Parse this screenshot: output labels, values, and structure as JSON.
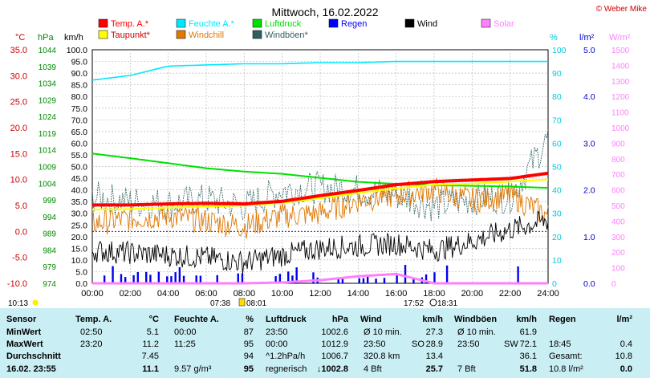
{
  "title": "Mittwoch, 16.02.2022",
  "copyright": "© Weber Mike",
  "units": {
    "temp": "°C",
    "pressure": "hPa",
    "wind": "km/h",
    "humidity": "%",
    "rain": "l/m²",
    "solar": "W/m²"
  },
  "legend": [
    {
      "label": "Temp. A.*",
      "color": "#ff0000"
    },
    {
      "label": "Feuchte A.*",
      "color": "#00e8ff"
    },
    {
      "label": "Luftdruck",
      "color": "#00e000"
    },
    {
      "label": "Regen",
      "color": "#0000ff"
    },
    {
      "label": "Wind",
      "color": "#000000"
    },
    {
      "label": "Solar",
      "color": "#ff7fff"
    },
    {
      "label": "Taupunkt*",
      "color": "#ffff00"
    },
    {
      "label": "Windchill",
      "color": "#e07800"
    },
    {
      "label": "Windböen*",
      "color": "#2f5f5f"
    }
  ],
  "axes": {
    "temp_ticks": [
      "35.0",
      "30.0",
      "25.0",
      "20.0",
      "15.0",
      "10.0",
      "5.0",
      "0.0",
      "-5.0",
      "-10.0"
    ],
    "pressure_ticks": [
      "1044",
      "1039",
      "1034",
      "1029",
      "1024",
      "1019",
      "1014",
      "1009",
      "1004",
      "999",
      "994",
      "989",
      "984",
      "979",
      "974"
    ],
    "wind_ticks": [
      "100.0",
      "95.0",
      "90.0",
      "85.0",
      "80.0",
      "75.0",
      "70.0",
      "65.0",
      "60.0",
      "55.0",
      "50.0",
      "45.0",
      "40.0",
      "35.0",
      "30.0",
      "25.0",
      "20.0",
      "15.0",
      "10.0",
      "5.0",
      "0.0"
    ],
    "humidity_ticks": [
      "100",
      "90",
      "80",
      "70",
      "60",
      "50",
      "40",
      "30",
      "20",
      "10",
      "0"
    ],
    "rain_ticks": [
      "5.0",
      "4.0",
      "3.0",
      "2.0",
      "1.0",
      "0.0"
    ],
    "solar_ticks": [
      "1500",
      "1400",
      "1300",
      "1200",
      "1100",
      "1000",
      "900",
      "800",
      "700",
      "600",
      "500",
      "400",
      "300",
      "200",
      "100",
      "0"
    ],
    "time_ticks": [
      "00:00",
      "02:00",
      "04:00",
      "06:00",
      "08:00",
      "10:00",
      "12:00",
      "14:00",
      "16:00",
      "18:00",
      "20:00",
      "22:00",
      "24:00"
    ]
  },
  "sun": {
    "rise": "07:38",
    "rise2": "08:01",
    "set": "17:52",
    "set2": "18:31",
    "moon": "10:13"
  },
  "chart_data": {
    "type": "line",
    "title": "Mittwoch, 16.02.2022",
    "x": [
      "00:00",
      "02:00",
      "04:00",
      "06:00",
      "08:00",
      "10:00",
      "12:00",
      "14:00",
      "16:00",
      "18:00",
      "20:00",
      "22:00",
      "24:00"
    ],
    "series": [
      {
        "name": "Temp. A.*",
        "unit": "°C",
        "values": [
          5.1,
          5.1,
          5.3,
          5.4,
          5.3,
          5.8,
          6.9,
          7.9,
          9.0,
          9.6,
          9.9,
          10.2,
          11.2
        ]
      },
      {
        "name": "Taupunkt*",
        "unit": "°C",
        "values": [
          4.2,
          4.3,
          4.6,
          4.8,
          5.0,
          5.5,
          6.4,
          7.4,
          8.3,
          9.0,
          9.2,
          9.6,
          10.0
        ]
      },
      {
        "name": "Windchill",
        "unit": "°C",
        "values": [
          1.5,
          2.5,
          3.0,
          2.0,
          1.0,
          3.0,
          3.5,
          6.0,
          7.0,
          8.0,
          6.0,
          7.0,
          3.0
        ]
      },
      {
        "name": "Feuchte A.*",
        "unit": "%",
        "values": [
          87,
          89,
          93,
          93.5,
          94,
          94,
          94.5,
          94.5,
          95,
          95,
          95,
          95,
          95
        ]
      },
      {
        "name": "Luftdruck",
        "unit": "hPa",
        "values": [
          1012.9,
          1011.5,
          1010.0,
          1008.5,
          1007.5,
          1006.8,
          1005.6,
          1004.4,
          1003.8,
          1003.4,
          1003.2,
          1003.0,
          1002.6
        ]
      },
      {
        "name": "Wind",
        "unit": "km/h",
        "values": [
          14,
          13,
          12,
          11,
          9,
          12,
          15,
          16,
          17,
          14,
          18,
          23,
          27
        ]
      },
      {
        "name": "Windböen*",
        "unit": "km/h",
        "values": [
          37,
          35,
          34,
          36,
          33,
          40,
          41,
          40,
          38,
          33,
          36,
          37,
          62
        ]
      },
      {
        "name": "Solar",
        "unit": "W/m²",
        "values": [
          0,
          0,
          0,
          0,
          0,
          5,
          20,
          45,
          60,
          0,
          0,
          0,
          0
        ]
      }
    ]
  },
  "table": {
    "header": [
      "Sensor",
      "Temp. A.",
      "°C",
      "Feuchte A.",
      "%",
      "Luftdruck",
      "hPa",
      "Wind",
      "km/h",
      "Windböen",
      "km/h",
      "Regen",
      "l/m²"
    ],
    "rows": [
      {
        "label": "MinWert",
        "temp_time": "02:50",
        "temp": "5.1",
        "hum_time": "00:00",
        "hum": "87",
        "press_time": "23:50",
        "press": "1002.6",
        "wind_label": "Ø 10 min.",
        "wind": "27.3",
        "gust_label": "Ø 10 min.",
        "gust": "61.9",
        "rain_label": "",
        "rain": ""
      },
      {
        "label": "MaxWert",
        "temp_time": "23:20",
        "temp": "11.2",
        "hum_time": "11:25",
        "hum": "95",
        "press_time": "00:00",
        "press": "1012.9",
        "wind_label": "23:50",
        "wind_dir": "SO",
        "wind": "28.9",
        "gust_label": "23:50",
        "gust_dir": "SW",
        "gust": "72.1",
        "rain_label": "18:45",
        "rain": "0.4"
      },
      {
        "label": "Durchschnitt",
        "temp_time": "",
        "temp": "7.45",
        "hum_time": "",
        "hum": "94",
        "press_time": "^1.2hPa/h",
        "press": "1006.7",
        "wind_label": "320.8 km",
        "wind": "13.4",
        "gust_label": "",
        "gust": "36.1",
        "rain_label": "Gesamt:",
        "rain": "10.8"
      },
      {
        "label": "16.02. 23:55",
        "temp_time": "",
        "temp": "11.1",
        "hum_time": "9.57 g/m³",
        "hum": "95",
        "press_time": "regnerisch",
        "press_arrow": "↓",
        "press": "1002.8",
        "wind_label": "4 Bft",
        "wind": "25.7",
        "gust_label": "7 Bft",
        "gust": "51.8",
        "rain_label": "10.8 l/m²",
        "rain": "0.0"
      }
    ]
  }
}
